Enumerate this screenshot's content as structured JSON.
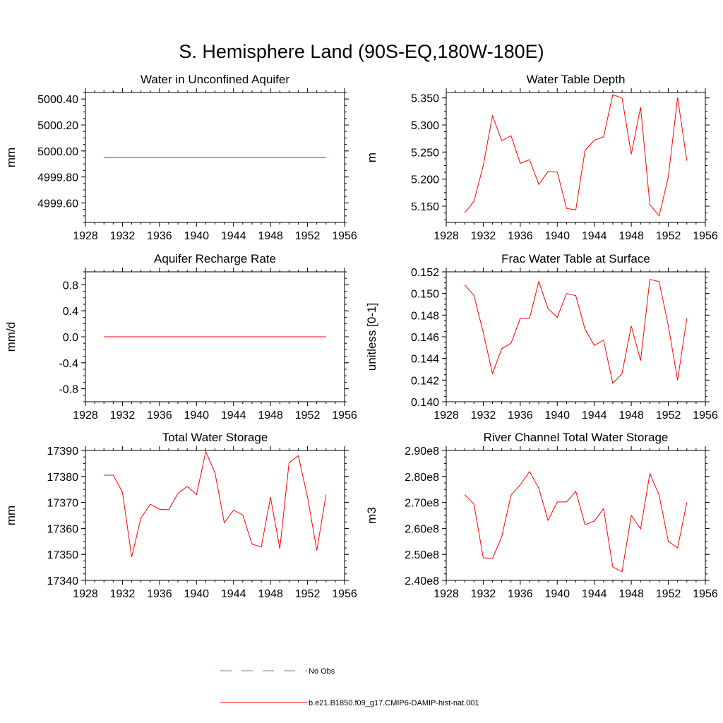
{
  "figure": {
    "title": "S. Hemisphere Land (90S-EQ,180W-180E)",
    "legend": [
      {
        "label": "No Obs",
        "color": "#7777cc",
        "style": "dashed"
      },
      {
        "label": "b.e21.B1850.f09_g17.CMIP6-DAMIP-hist-nat.001",
        "color": "#ff0000",
        "style": "solid"
      }
    ]
  },
  "chart_data": [
    {
      "type": "line",
      "title": "Water in Unconfined Aquifer",
      "ylabel": "mm",
      "xlim": [
        1928,
        1956
      ],
      "ylim": [
        4999.45,
        5000.45
      ],
      "xticks": [
        "1928",
        "1932",
        "1936",
        "1940",
        "1944",
        "1948",
        "1952",
        "1956"
      ],
      "yticks": [
        {
          "v": 4999.6,
          "label": "4999.60"
        },
        {
          "v": 4999.8,
          "label": "4999.80"
        },
        {
          "v": 5000.0,
          "label": "5000.00"
        },
        {
          "v": 5000.2,
          "label": "5000.20"
        },
        {
          "v": 5000.4,
          "label": "5000.40"
        }
      ],
      "x": [
        1930,
        1931,
        1932,
        1933,
        1934,
        1935,
        1936,
        1937,
        1938,
        1939,
        1940,
        1941,
        1942,
        1943,
        1944,
        1945,
        1946,
        1947,
        1948,
        1949,
        1950,
        1951,
        1952,
        1953,
        1954
      ],
      "series": [
        {
          "color": "#ff0000",
          "values": [
            4999.95,
            4999.95,
            4999.95,
            4999.95,
            4999.95,
            4999.95,
            4999.95,
            4999.95,
            4999.95,
            4999.95,
            4999.95,
            4999.95,
            4999.95,
            4999.95,
            4999.95,
            4999.95,
            4999.95,
            4999.95,
            4999.95,
            4999.95,
            4999.95,
            4999.95,
            4999.95,
            4999.95,
            4999.95
          ]
        }
      ]
    },
    {
      "type": "line",
      "title": "Water Table Depth",
      "ylabel": "m",
      "xlim": [
        1928,
        1956
      ],
      "ylim": [
        5.12,
        5.36
      ],
      "xticks": [
        "1928",
        "1932",
        "1936",
        "1940",
        "1944",
        "1948",
        "1952",
        "1956"
      ],
      "yticks": [
        {
          "v": 5.15,
          "label": "5.150"
        },
        {
          "v": 5.2,
          "label": "5.200"
        },
        {
          "v": 5.25,
          "label": "5.250"
        },
        {
          "v": 5.3,
          "label": "5.300"
        },
        {
          "v": 5.35,
          "label": "5.350"
        }
      ],
      "x": [
        1930,
        1931,
        1932,
        1933,
        1934,
        1935,
        1936,
        1937,
        1938,
        1939,
        1940,
        1941,
        1942,
        1943,
        1944,
        1945,
        1946,
        1947,
        1948,
        1949,
        1950,
        1951,
        1952,
        1953,
        1954
      ],
      "series": [
        {
          "color": "#ff0000",
          "values": [
            5.138,
            5.159,
            5.225,
            5.317,
            5.271,
            5.28,
            5.229,
            5.236,
            5.19,
            5.214,
            5.213,
            5.146,
            5.143,
            5.253,
            5.272,
            5.278,
            5.356,
            5.35,
            5.246,
            5.333,
            5.153,
            5.132,
            5.204,
            5.351,
            5.234
          ]
        }
      ]
    },
    {
      "type": "line",
      "title": "Aquifer Recharge Rate",
      "ylabel": "mm/d",
      "xlim": [
        1928,
        1956
      ],
      "ylim": [
        -1.0,
        1.0
      ],
      "xticks": [
        "1928",
        "1932",
        "1936",
        "1940",
        "1944",
        "1948",
        "1952",
        "1956"
      ],
      "yticks": [
        {
          "v": -0.8,
          "label": "-0.8"
        },
        {
          "v": -0.4,
          "label": "-0.4"
        },
        {
          "v": 0.0,
          "label": "0.0"
        },
        {
          "v": 0.4,
          "label": "0.4"
        },
        {
          "v": 0.8,
          "label": "0.8"
        }
      ],
      "x": [
        1930,
        1931,
        1932,
        1933,
        1934,
        1935,
        1936,
        1937,
        1938,
        1939,
        1940,
        1941,
        1942,
        1943,
        1944,
        1945,
        1946,
        1947,
        1948,
        1949,
        1950,
        1951,
        1952,
        1953,
        1954
      ],
      "series": [
        {
          "color": "#ff0000",
          "values": [
            0,
            0,
            0,
            0,
            0,
            0,
            0,
            0,
            0,
            0,
            0,
            0,
            0,
            0,
            0,
            0,
            0,
            0,
            0,
            0,
            0,
            0,
            0,
            0,
            0
          ]
        }
      ]
    },
    {
      "type": "line",
      "title": "Frac Water Table at Surface",
      "ylabel": "unitless [0-1]",
      "xlim": [
        1928,
        1956
      ],
      "ylim": [
        0.14,
        0.152
      ],
      "xticks": [
        "1928",
        "1932",
        "1936",
        "1940",
        "1944",
        "1948",
        "1952",
        "1956"
      ],
      "yticks": [
        {
          "v": 0.14,
          "label": "0.140"
        },
        {
          "v": 0.142,
          "label": "0.142"
        },
        {
          "v": 0.144,
          "label": "0.144"
        },
        {
          "v": 0.146,
          "label": "0.146"
        },
        {
          "v": 0.148,
          "label": "0.148"
        },
        {
          "v": 0.15,
          "label": "0.150"
        },
        {
          "v": 0.152,
          "label": "0.152"
        }
      ],
      "x": [
        1930,
        1931,
        1932,
        1933,
        1934,
        1935,
        1936,
        1937,
        1938,
        1939,
        1940,
        1941,
        1942,
        1943,
        1944,
        1945,
        1946,
        1947,
        1948,
        1949,
        1950,
        1951,
        1952,
        1953,
        1954
      ],
      "series": [
        {
          "color": "#ff0000",
          "values": [
            0.1508,
            0.1498,
            0.1464,
            0.1426,
            0.1449,
            0.1454,
            0.1477,
            0.1477,
            0.1511,
            0.1486,
            0.1478,
            0.15,
            0.1498,
            0.1467,
            0.1452,
            0.1457,
            0.1417,
            0.1426,
            0.147,
            0.1438,
            0.1513,
            0.1511,
            0.147,
            0.142,
            0.1477
          ]
        }
      ]
    },
    {
      "type": "line",
      "title": "Total Water Storage",
      "ylabel": "mm",
      "xlim": [
        1928,
        1956
      ],
      "ylim": [
        17340,
        17390
      ],
      "xticks": [
        "1928",
        "1932",
        "1936",
        "1940",
        "1944",
        "1948",
        "1952",
        "1956"
      ],
      "yticks": [
        {
          "v": 17340,
          "label": "17340"
        },
        {
          "v": 17350,
          "label": "17350"
        },
        {
          "v": 17360,
          "label": "17360"
        },
        {
          "v": 17370,
          "label": "17370"
        },
        {
          "v": 17380,
          "label": "17380"
        },
        {
          "v": 17390,
          "label": "17390"
        }
      ],
      "x": [
        1930,
        1931,
        1932,
        1933,
        1934,
        1935,
        1936,
        1937,
        1938,
        1939,
        1940,
        1941,
        1942,
        1943,
        1944,
        1945,
        1946,
        1947,
        1948,
        1949,
        1950,
        1951,
        1952,
        1953,
        1954
      ],
      "series": [
        {
          "color": "#ff0000",
          "values": [
            17380.5,
            17380.5,
            17374,
            17349,
            17364,
            17369.3,
            17367.4,
            17367.2,
            17373.5,
            17376.2,
            17373,
            17389.5,
            17381.4,
            17362.2,
            17367,
            17365.2,
            17354,
            17352.8,
            17372,
            17352.2,
            17385.3,
            17388,
            17372,
            17351.5,
            17373
          ]
        }
      ]
    },
    {
      "type": "line",
      "title": "River Channel Total Water Storage",
      "ylabel": "m3",
      "xlim": [
        1928,
        1956
      ],
      "ylim": [
        240000000,
        290000000
      ],
      "xticks": [
        "1928",
        "1932",
        "1936",
        "1940",
        "1944",
        "1948",
        "1952",
        "1956"
      ],
      "yticks": [
        {
          "v": 240000000,
          "label": "2.40e8"
        },
        {
          "v": 250000000,
          "label": "2.50e8"
        },
        {
          "v": 260000000,
          "label": "2.60e8"
        },
        {
          "v": 270000000,
          "label": "2.70e8"
        },
        {
          "v": 280000000,
          "label": "2.80e8"
        },
        {
          "v": 290000000,
          "label": "2.90e8"
        }
      ],
      "x": [
        1930,
        1931,
        1932,
        1933,
        1934,
        1935,
        1936,
        1937,
        1938,
        1939,
        1940,
        1941,
        1942,
        1943,
        1944,
        1945,
        1946,
        1947,
        1948,
        1949,
        1950,
        1951,
        1952,
        1953,
        1954
      ],
      "series": [
        {
          "color": "#ff0000",
          "values": [
            273000000,
            269300000,
            248700000,
            248400000,
            256800000,
            272800000,
            276800000,
            281900000,
            275500000,
            263100000,
            270200000,
            270200000,
            274300000,
            261400000,
            262800000,
            267600000,
            245200000,
            243300000,
            265000000,
            259800000,
            281100000,
            272800000,
            255000000,
            252500000,
            270000000
          ]
        }
      ]
    }
  ]
}
